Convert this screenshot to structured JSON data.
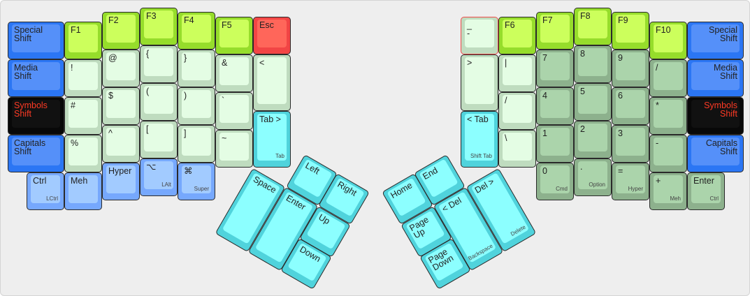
{
  "left": [
    {
      "label": "Special\nShift",
      "color": "blue"
    },
    {
      "label": "Media\nShift",
      "color": "blue"
    },
    {
      "label": "Symbols\nShift",
      "color": "black"
    },
    {
      "label": "Capitals\nShift",
      "color": "blue"
    },
    {
      "label": "Ctrl",
      "sub": "LCtrl",
      "color": "lblue"
    },
    {
      "label": "F1",
      "color": "lime"
    },
    {
      "label": "!",
      "color": "sym"
    },
    {
      "label": "#",
      "color": "sym"
    },
    {
      "label": "%",
      "color": "sym"
    },
    {
      "label": "Meh",
      "color": "lblue"
    },
    {
      "label": "F2",
      "color": "lime"
    },
    {
      "label": "@",
      "color": "sym"
    },
    {
      "label": "$",
      "color": "sym"
    },
    {
      "label": "^",
      "color": "sym"
    },
    {
      "label": "Hyper",
      "color": "lblue"
    },
    {
      "label": "F3",
      "color": "lime"
    },
    {
      "label": "{",
      "color": "sym"
    },
    {
      "label": "(",
      "color": "sym"
    },
    {
      "label": "[",
      "color": "sym"
    },
    {
      "label": "⌥",
      "sub": "LAlt",
      "color": "lblue"
    },
    {
      "label": "F4",
      "color": "lime"
    },
    {
      "label": "}",
      "color": "sym"
    },
    {
      "label": ")",
      "color": "sym"
    },
    {
      "label": "]",
      "color": "sym"
    },
    {
      "label": "⌘",
      "sub": "Super",
      "color": "lblue"
    },
    {
      "label": "F5",
      "color": "lime"
    },
    {
      "label": "&",
      "color": "sym"
    },
    {
      "label": "`",
      "color": "sym"
    },
    {
      "label": "~",
      "color": "sym"
    },
    {
      "label": "Esc",
      "color": "red"
    },
    {
      "label": "<",
      "color": "sym"
    },
    {
      "label": "Tab >",
      "sub": "Tab",
      "color": "cyan"
    }
  ],
  "right": [
    {
      "label": "Special\nShift",
      "color": "blue"
    },
    {
      "label": "Media\nShift",
      "color": "blue"
    },
    {
      "label": "Symbols\nShift",
      "color": "black"
    },
    {
      "label": "Capitals\nShift",
      "color": "blue"
    },
    {
      "label": "Enter",
      "sub": "Ctrl",
      "color": "num"
    },
    {
      "label": "F10",
      "color": "lime"
    },
    {
      "label": "/",
      "color": "num"
    },
    {
      "label": "*",
      "color": "num"
    },
    {
      "label": "-",
      "color": "num"
    },
    {
      "label": "+",
      "sub": "Meh",
      "color": "num"
    },
    {
      "label": "F9",
      "color": "lime"
    },
    {
      "label": "9",
      "color": "num"
    },
    {
      "label": "6",
      "color": "num"
    },
    {
      "label": "3",
      "color": "num"
    },
    {
      "label": "=",
      "sub": "Hyper",
      "color": "num"
    },
    {
      "label": "F8",
      "color": "lime"
    },
    {
      "label": "8",
      "color": "num"
    },
    {
      "label": "5",
      "color": "num"
    },
    {
      "label": "2",
      "color": "num"
    },
    {
      "label": ".",
      "sub": "Option",
      "color": "num"
    },
    {
      "label": "F7",
      "color": "lime"
    },
    {
      "label": "7",
      "color": "num"
    },
    {
      "label": "4",
      "color": "num"
    },
    {
      "label": "1",
      "color": "num"
    },
    {
      "label": "0",
      "sub": "Cmd",
      "color": "num"
    },
    {
      "label": "F6",
      "color": "lime"
    },
    {
      "label": "|",
      "color": "sym"
    },
    {
      "label": "/",
      "color": "sym"
    },
    {
      "label": "\\",
      "color": "sym"
    },
    {
      "label": "_\n-",
      "color": "sym",
      "selected": true
    },
    {
      "label": ">",
      "color": "sym"
    },
    {
      "label": "< Tab",
      "sub": "Shift Tab",
      "color": "cyan"
    }
  ],
  "left_thumb": [
    {
      "label": "Space",
      "color": "cyan"
    },
    {
      "label": "Enter",
      "color": "cyan"
    },
    {
      "label": "Left",
      "color": "cyan"
    },
    {
      "label": "Right",
      "color": "cyan"
    },
    {
      "label": "Up",
      "color": "cyan"
    },
    {
      "label": "Down",
      "color": "cyan"
    }
  ],
  "right_thumb": [
    {
      "label": "Del >",
      "sub": "Delete",
      "color": "cyan"
    },
    {
      "label": "< Del",
      "sub": "Backspace",
      "color": "cyan"
    },
    {
      "label": "End",
      "color": "cyan"
    },
    {
      "label": "Home",
      "color": "cyan"
    },
    {
      "label": "Page\nUp",
      "color": "cyan"
    },
    {
      "label": "Page\nDown",
      "color": "cyan"
    }
  ]
}
